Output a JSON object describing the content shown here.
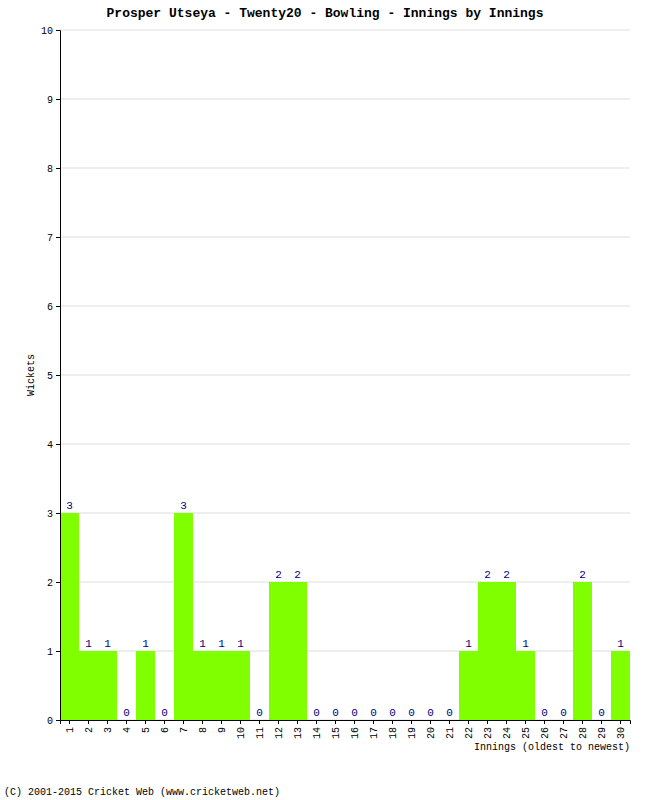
{
  "chart_data": {
    "type": "bar",
    "title": "Prosper Utseya - Twenty20 - Bowling - Innings by Innings",
    "x_label": "Innings (oldest to newest)",
    "y_label": "Wickets",
    "footer": "(C) 2001-2015 Cricket Web (www.cricketweb.net)",
    "categories": [
      "1",
      "2",
      "3",
      "4",
      "5",
      "6",
      "7",
      "8",
      "9",
      "10",
      "11",
      "12",
      "13",
      "14",
      "15",
      "16",
      "17",
      "18",
      "19",
      "20",
      "21",
      "22",
      "23",
      "24",
      "25",
      "26",
      "27",
      "28",
      "29",
      "30"
    ],
    "values": [
      3,
      1,
      1,
      0,
      1,
      0,
      3,
      1,
      1,
      1,
      0,
      2,
      2,
      0,
      0,
      0,
      0,
      0,
      0,
      0,
      0,
      1,
      2,
      2,
      1,
      0,
      0,
      2,
      0,
      1
    ],
    "color": "#80ff00",
    "ylim": [
      0,
      10
    ],
    "yticks": [
      0,
      1,
      2,
      3,
      4,
      5,
      6,
      7,
      8,
      9,
      10
    ],
    "grid": true,
    "data_labels": true
  }
}
